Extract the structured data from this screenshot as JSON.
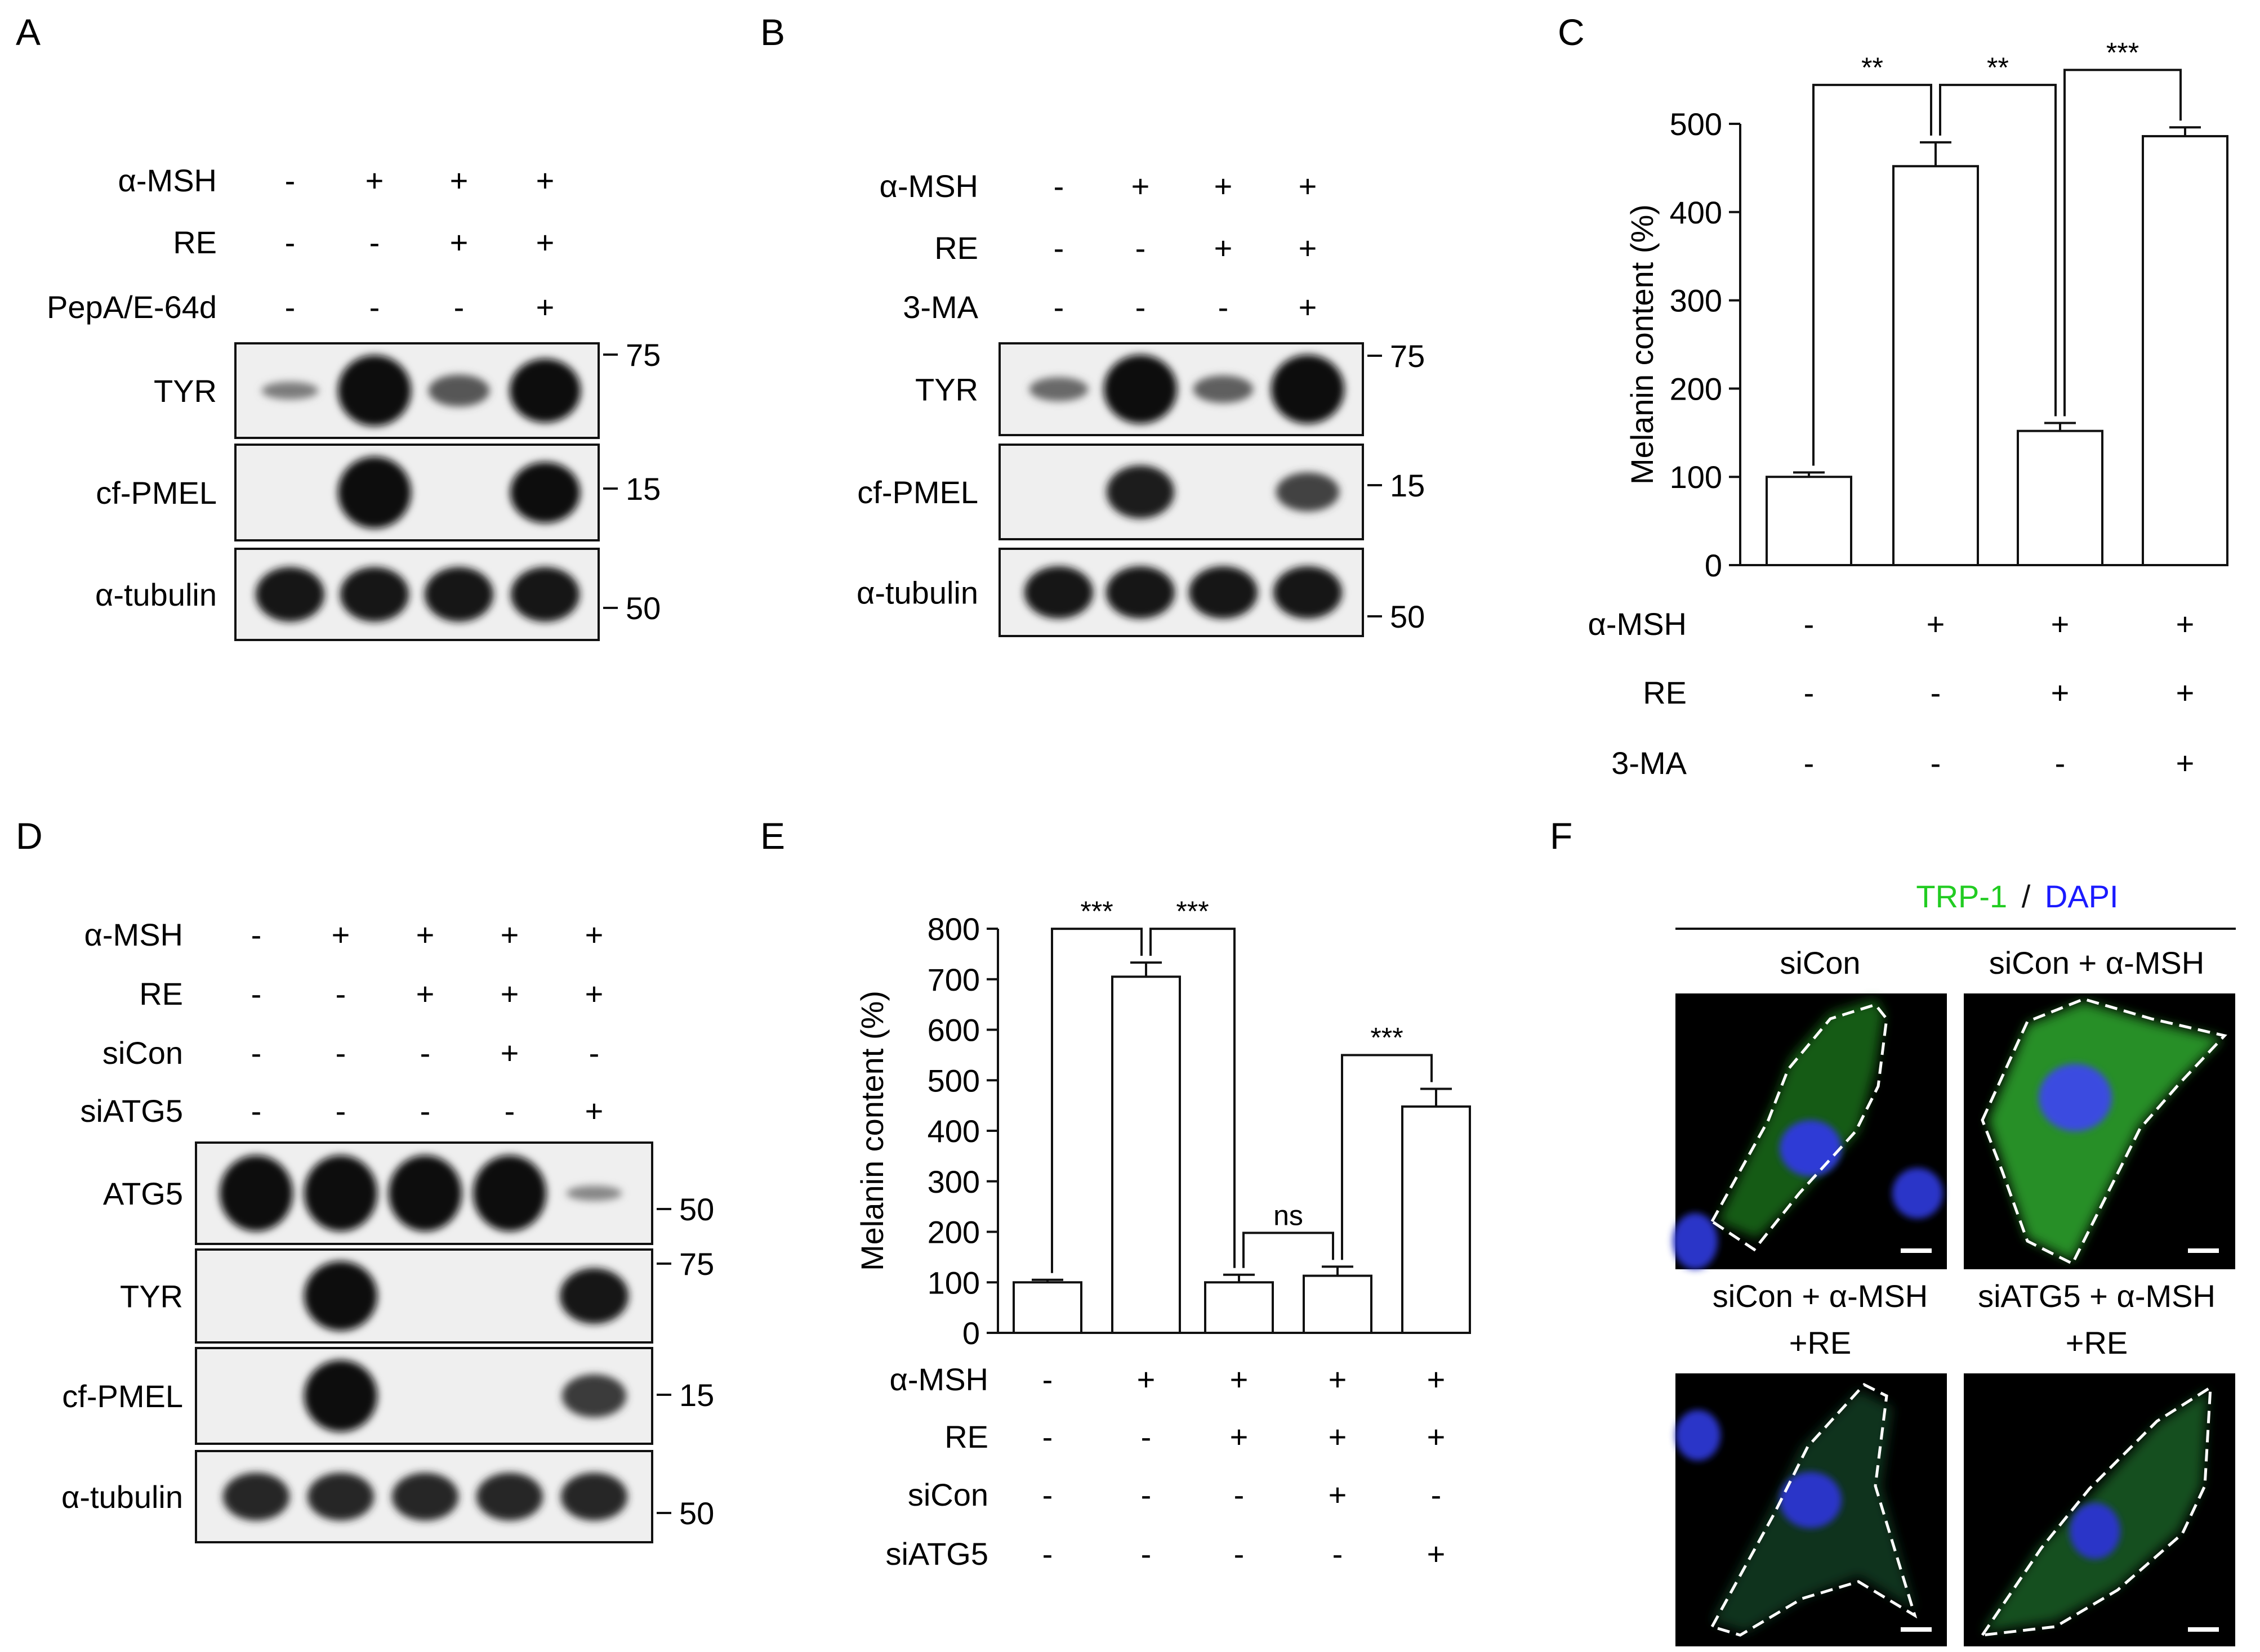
{
  "panels": {
    "A": {
      "letter": "A",
      "conditions": [
        {
          "label": "α-MSH",
          "values": [
            "-",
            "+",
            "+",
            "+"
          ]
        },
        {
          "label": "RE",
          "values": [
            "-",
            "-",
            "+",
            "+"
          ]
        },
        {
          "label": "PepA/E-64d",
          "values": [
            "-",
            "-",
            "-",
            "+"
          ]
        }
      ],
      "blots": [
        {
          "label": "TYR",
          "marker": "75",
          "bands": [
            0.25,
            1.0,
            0.45,
            0.9
          ]
        },
        {
          "label": "cf-PMEL",
          "marker": "15",
          "bands": [
            0,
            1.0,
            0,
            0.85
          ]
        },
        {
          "label": "α-tubulin",
          "marker": "50",
          "bands": [
            0.8,
            0.8,
            0.8,
            0.8
          ]
        }
      ]
    },
    "B": {
      "letter": "B",
      "conditions": [
        {
          "label": "α-MSH",
          "values": [
            "-",
            "+",
            "+",
            "+"
          ]
        },
        {
          "label": "RE",
          "values": [
            "-",
            "-",
            "+",
            "+"
          ]
        },
        {
          "label": "3-MA",
          "values": [
            "-",
            "-",
            "-",
            "+"
          ]
        }
      ],
      "blots": [
        {
          "label": "TYR",
          "marker": "75",
          "bands": [
            0.35,
            1.0,
            0.4,
            1.0
          ]
        },
        {
          "label": "cf-PMEL",
          "marker": "15",
          "bands": [
            0,
            0.75,
            0,
            0.55
          ]
        },
        {
          "label": "α-tubulin",
          "marker": "50",
          "bands": [
            0.8,
            0.8,
            0.8,
            0.8
          ]
        }
      ]
    },
    "D": {
      "letter": "D",
      "conditions": [
        {
          "label": "α-MSH",
          "values": [
            "-",
            "+",
            "+",
            "+",
            "+"
          ]
        },
        {
          "label": "RE",
          "values": [
            "-",
            "-",
            "+",
            "+",
            "+"
          ]
        },
        {
          "label": "siCon",
          "values": [
            "-",
            "-",
            "-",
            "+",
            "-"
          ]
        },
        {
          "label": "siATG5",
          "values": [
            "-",
            "-",
            "-",
            "-",
            "+"
          ]
        }
      ],
      "blots": [
        {
          "label": "ATG5",
          "marker": "50",
          "bands": [
            1.0,
            1.0,
            1.0,
            1.0,
            0.2
          ]
        },
        {
          "label": "TYR",
          "marker": "75",
          "bands": [
            0,
            1.0,
            0,
            0,
            0.8
          ]
        },
        {
          "label": "cf-PMEL",
          "marker": "15",
          "bands": [
            0,
            1.0,
            0,
            0,
            0.6
          ]
        },
        {
          "label": "α-tubulin",
          "marker": "50",
          "bands": [
            0.7,
            0.7,
            0.7,
            0.7,
            0.7
          ]
        }
      ]
    },
    "F": {
      "letter": "F",
      "stain_label_1": "TRP-1",
      "stain_sep": "/",
      "stain_label_2": "DAPI",
      "colors": {
        "trp1": "#22cc22",
        "dapi": "#1a1aff"
      },
      "images": [
        {
          "line1": "siCon",
          "line2": ""
        },
        {
          "line1": "siCon + α-MSH",
          "line2": ""
        },
        {
          "line1": "siCon + α-MSH",
          "line2": "+RE"
        },
        {
          "line1": "siATG5 + α-MSH",
          "line2": "+RE"
        }
      ]
    }
  },
  "chart_data": [
    {
      "panel": "C",
      "letter": "C",
      "type": "bar",
      "ylabel": "Melanin content (%)",
      "ylim": [
        0,
        500
      ],
      "yticks": [
        0,
        100,
        200,
        300,
        400,
        500
      ],
      "values": [
        100,
        452,
        152,
        486
      ],
      "errors": [
        5,
        27,
        9,
        10
      ],
      "conditions": [
        {
          "label": "α-MSH",
          "values": [
            "-",
            "+",
            "+",
            "+"
          ]
        },
        {
          "label": "RE",
          "values": [
            "-",
            "-",
            "+",
            "+"
          ]
        },
        {
          "label": "3-MA",
          "values": [
            "-",
            "-",
            "-",
            "+"
          ]
        }
      ],
      "significance": [
        {
          "from": 0,
          "to": 1,
          "label": "**"
        },
        {
          "from": 1,
          "to": 2,
          "label": "**"
        },
        {
          "from": 2,
          "to": 3,
          "label": "***"
        }
      ]
    },
    {
      "panel": "E",
      "letter": "E",
      "type": "bar",
      "ylabel": "Melanin content (%)",
      "ylim": [
        0,
        800
      ],
      "yticks": [
        0,
        100,
        200,
        300,
        400,
        500,
        600,
        700,
        800
      ],
      "values": [
        100,
        705,
        100,
        113,
        448
      ],
      "errors": [
        5,
        28,
        15,
        18,
        35
      ],
      "conditions": [
        {
          "label": "α-MSH",
          "values": [
            "-",
            "+",
            "+",
            "+",
            "+"
          ]
        },
        {
          "label": "RE",
          "values": [
            "-",
            "-",
            "+",
            "+",
            "+"
          ]
        },
        {
          "label": "siCon",
          "values": [
            "-",
            "-",
            "-",
            "+",
            "-"
          ]
        },
        {
          "label": "siATG5",
          "values": [
            "-",
            "-",
            "-",
            "-",
            "+"
          ]
        }
      ],
      "significance": [
        {
          "from": 0,
          "to": 1,
          "label": "***"
        },
        {
          "from": 1,
          "to": 2,
          "label": "***"
        },
        {
          "from": 2,
          "to": 3,
          "label": "ns"
        },
        {
          "from": 3,
          "to": 4,
          "label": "***"
        }
      ]
    }
  ]
}
